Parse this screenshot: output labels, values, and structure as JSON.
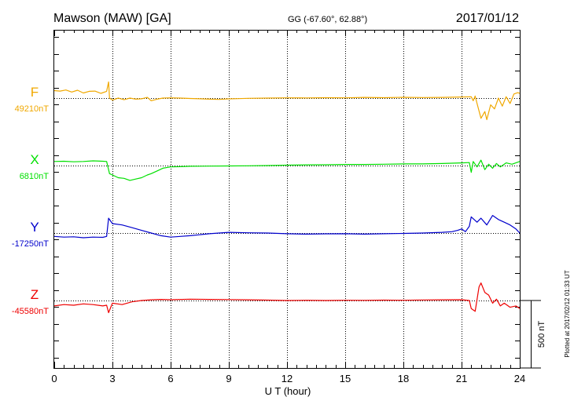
{
  "header": {
    "station": "Mawson (MAW)  [GA]",
    "coords": "GG (-67.60°,  62.88°)",
    "date": "2017/01/12"
  },
  "plot_note": "Plotted at 2017/02/12 01:33 UT",
  "scale_label": "500 nT",
  "colors": {
    "F": "#f0a800",
    "X": "#00e000",
    "Y": "#0000cc",
    "Z": "#ee0000"
  },
  "chart_data": {
    "type": "line",
    "xlabel": "U T (hour)",
    "xlim": [
      0,
      24
    ],
    "x_ticks": [
      "0",
      "3",
      "6",
      "9",
      "12",
      "15",
      "18",
      "21",
      "24"
    ],
    "grid": "dotted vertical lines every 3 h; dotted baseline per component",
    "scale_bar_nT": 500,
    "series": [
      {
        "name": "F",
        "baseline_label": "49210nT",
        "baseline_nT": 49210,
        "points": [
          [
            0,
            55
          ],
          [
            0.3,
            52
          ],
          [
            0.6,
            60
          ],
          [
            0.9,
            45
          ],
          [
            1.2,
            58
          ],
          [
            1.5,
            38
          ],
          [
            1.8,
            50
          ],
          [
            2.1,
            52
          ],
          [
            2.4,
            35
          ],
          [
            2.7,
            50
          ],
          [
            2.8,
            120
          ],
          [
            2.85,
            0
          ],
          [
            3.0,
            -15
          ],
          [
            3.3,
            0
          ],
          [
            3.6,
            -12
          ],
          [
            3.9,
            0
          ],
          [
            4.2,
            -8
          ],
          [
            4.5,
            -5
          ],
          [
            4.8,
            5
          ],
          [
            5.0,
            -20
          ],
          [
            5.3,
            -8
          ],
          [
            5.6,
            0
          ],
          [
            6.0,
            2
          ],
          [
            6.5,
            0
          ],
          [
            7.0,
            -3
          ],
          [
            7.5,
            -5
          ],
          [
            8.0,
            -8
          ],
          [
            8.5,
            -10
          ],
          [
            9.0,
            -6
          ],
          [
            9.5,
            -4
          ],
          [
            10.0,
            -2
          ],
          [
            11.0,
            0
          ],
          [
            12.0,
            2
          ],
          [
            13.0,
            1
          ],
          [
            14.0,
            3
          ],
          [
            15.0,
            2
          ],
          [
            16.0,
            5
          ],
          [
            17.0,
            3
          ],
          [
            18.0,
            6
          ],
          [
            19.0,
            4
          ],
          [
            20.0,
            5
          ],
          [
            21.0,
            8
          ],
          [
            21.5,
            10
          ],
          [
            21.6,
            -20
          ],
          [
            21.7,
            15
          ],
          [
            21.8,
            -40
          ],
          [
            22.0,
            -150
          ],
          [
            22.2,
            -100
          ],
          [
            22.3,
            -160
          ],
          [
            22.5,
            -50
          ],
          [
            22.7,
            -80
          ],
          [
            22.9,
            0
          ],
          [
            23.1,
            -60
          ],
          [
            23.3,
            10
          ],
          [
            23.5,
            -40
          ],
          [
            23.7,
            30
          ],
          [
            23.9,
            40
          ],
          [
            24.0,
            35
          ]
        ]
      },
      {
        "name": "X",
        "baseline_label": "6810nT",
        "baseline_nT": 6810,
        "points": [
          [
            0,
            30
          ],
          [
            0.5,
            32
          ],
          [
            1.0,
            28
          ],
          [
            1.5,
            30
          ],
          [
            2.0,
            35
          ],
          [
            2.5,
            32
          ],
          [
            2.7,
            30
          ],
          [
            2.85,
            -60
          ],
          [
            3.0,
            -70
          ],
          [
            3.3,
            -90
          ],
          [
            3.6,
            -95
          ],
          [
            3.9,
            -110
          ],
          [
            4.2,
            -100
          ],
          [
            4.5,
            -90
          ],
          [
            4.8,
            -70
          ],
          [
            5.0,
            -60
          ],
          [
            5.3,
            -40
          ],
          [
            5.6,
            -20
          ],
          [
            6.0,
            -10
          ],
          [
            6.5,
            -8
          ],
          [
            7.0,
            -5
          ],
          [
            8.0,
            -4
          ],
          [
            9.0,
            -3
          ],
          [
            10.0,
            -2
          ],
          [
            11.0,
            0
          ],
          [
            12.0,
            3
          ],
          [
            13.0,
            5
          ],
          [
            14.0,
            6
          ],
          [
            15.0,
            8
          ],
          [
            16.0,
            8
          ],
          [
            17.0,
            10
          ],
          [
            18.0,
            12
          ],
          [
            19.0,
            12
          ],
          [
            20.0,
            15
          ],
          [
            21.0,
            20
          ],
          [
            21.4,
            22
          ],
          [
            21.5,
            -50
          ],
          [
            21.6,
            30
          ],
          [
            21.8,
            -10
          ],
          [
            22.0,
            40
          ],
          [
            22.2,
            -30
          ],
          [
            22.4,
            10
          ],
          [
            22.6,
            -20
          ],
          [
            22.8,
            15
          ],
          [
            23.0,
            -10
          ],
          [
            23.3,
            20
          ],
          [
            23.6,
            10
          ],
          [
            24.0,
            30
          ]
        ]
      },
      {
        "name": "Y",
        "baseline_label": "-17250nT",
        "baseline_nT": -17250,
        "points": [
          [
            0,
            -25
          ],
          [
            0.5,
            -30
          ],
          [
            1.0,
            -28
          ],
          [
            1.5,
            -35
          ],
          [
            2.0,
            -30
          ],
          [
            2.5,
            -32
          ],
          [
            2.7,
            -25
          ],
          [
            2.8,
            110
          ],
          [
            3.0,
            70
          ],
          [
            3.5,
            60
          ],
          [
            4.0,
            40
          ],
          [
            4.5,
            20
          ],
          [
            5.0,
            0
          ],
          [
            5.5,
            -20
          ],
          [
            6.0,
            -30
          ],
          [
            6.5,
            -25
          ],
          [
            7.0,
            -20
          ],
          [
            8.0,
            -5
          ],
          [
            9.0,
            5
          ],
          [
            10.0,
            2
          ],
          [
            11.0,
            0
          ],
          [
            12.0,
            -5
          ],
          [
            13.0,
            -8
          ],
          [
            14.0,
            -6
          ],
          [
            15.0,
            -5
          ],
          [
            16.0,
            -8
          ],
          [
            17.0,
            -5
          ],
          [
            18.0,
            -3
          ],
          [
            19.0,
            0
          ],
          [
            20.0,
            5
          ],
          [
            20.5,
            10
          ],
          [
            20.8,
            20
          ],
          [
            21.0,
            30
          ],
          [
            21.2,
            10
          ],
          [
            21.4,
            50
          ],
          [
            21.5,
            120
          ],
          [
            21.8,
            80
          ],
          [
            22.0,
            110
          ],
          [
            22.3,
            60
          ],
          [
            22.6,
            130
          ],
          [
            22.9,
            100
          ],
          [
            23.2,
            80
          ],
          [
            23.5,
            60
          ],
          [
            23.8,
            30
          ],
          [
            24.0,
            0
          ]
        ]
      },
      {
        "name": "Z",
        "baseline_label": "-45580nT",
        "baseline_nT": -45580,
        "points": [
          [
            0,
            -40
          ],
          [
            0.5,
            -30
          ],
          [
            1.0,
            -35
          ],
          [
            1.5,
            -25
          ],
          [
            2.0,
            -30
          ],
          [
            2.5,
            -40
          ],
          [
            2.7,
            -35
          ],
          [
            2.8,
            -90
          ],
          [
            3.0,
            -20
          ],
          [
            3.5,
            -30
          ],
          [
            4.0,
            -10
          ],
          [
            4.5,
            0
          ],
          [
            5.0,
            5
          ],
          [
            5.5,
            8
          ],
          [
            6.0,
            6
          ],
          [
            7.0,
            10
          ],
          [
            8.0,
            8
          ],
          [
            9.0,
            7
          ],
          [
            10.0,
            5
          ],
          [
            11.0,
            3
          ],
          [
            12.0,
            0
          ],
          [
            13.0,
            2
          ],
          [
            14.0,
            0
          ],
          [
            15.0,
            2
          ],
          [
            16.0,
            1
          ],
          [
            17.0,
            3
          ],
          [
            18.0,
            2
          ],
          [
            19.0,
            4
          ],
          [
            20.0,
            5
          ],
          [
            21.0,
            6
          ],
          [
            21.4,
            0
          ],
          [
            21.5,
            -60
          ],
          [
            21.7,
            -80
          ],
          [
            21.9,
            100
          ],
          [
            22.0,
            130
          ],
          [
            22.2,
            60
          ],
          [
            22.4,
            40
          ],
          [
            22.6,
            -20
          ],
          [
            22.8,
            10
          ],
          [
            23.0,
            -40
          ],
          [
            23.2,
            -20
          ],
          [
            23.5,
            -50
          ],
          [
            23.8,
            -40
          ],
          [
            24.0,
            -60
          ]
        ]
      }
    ]
  }
}
